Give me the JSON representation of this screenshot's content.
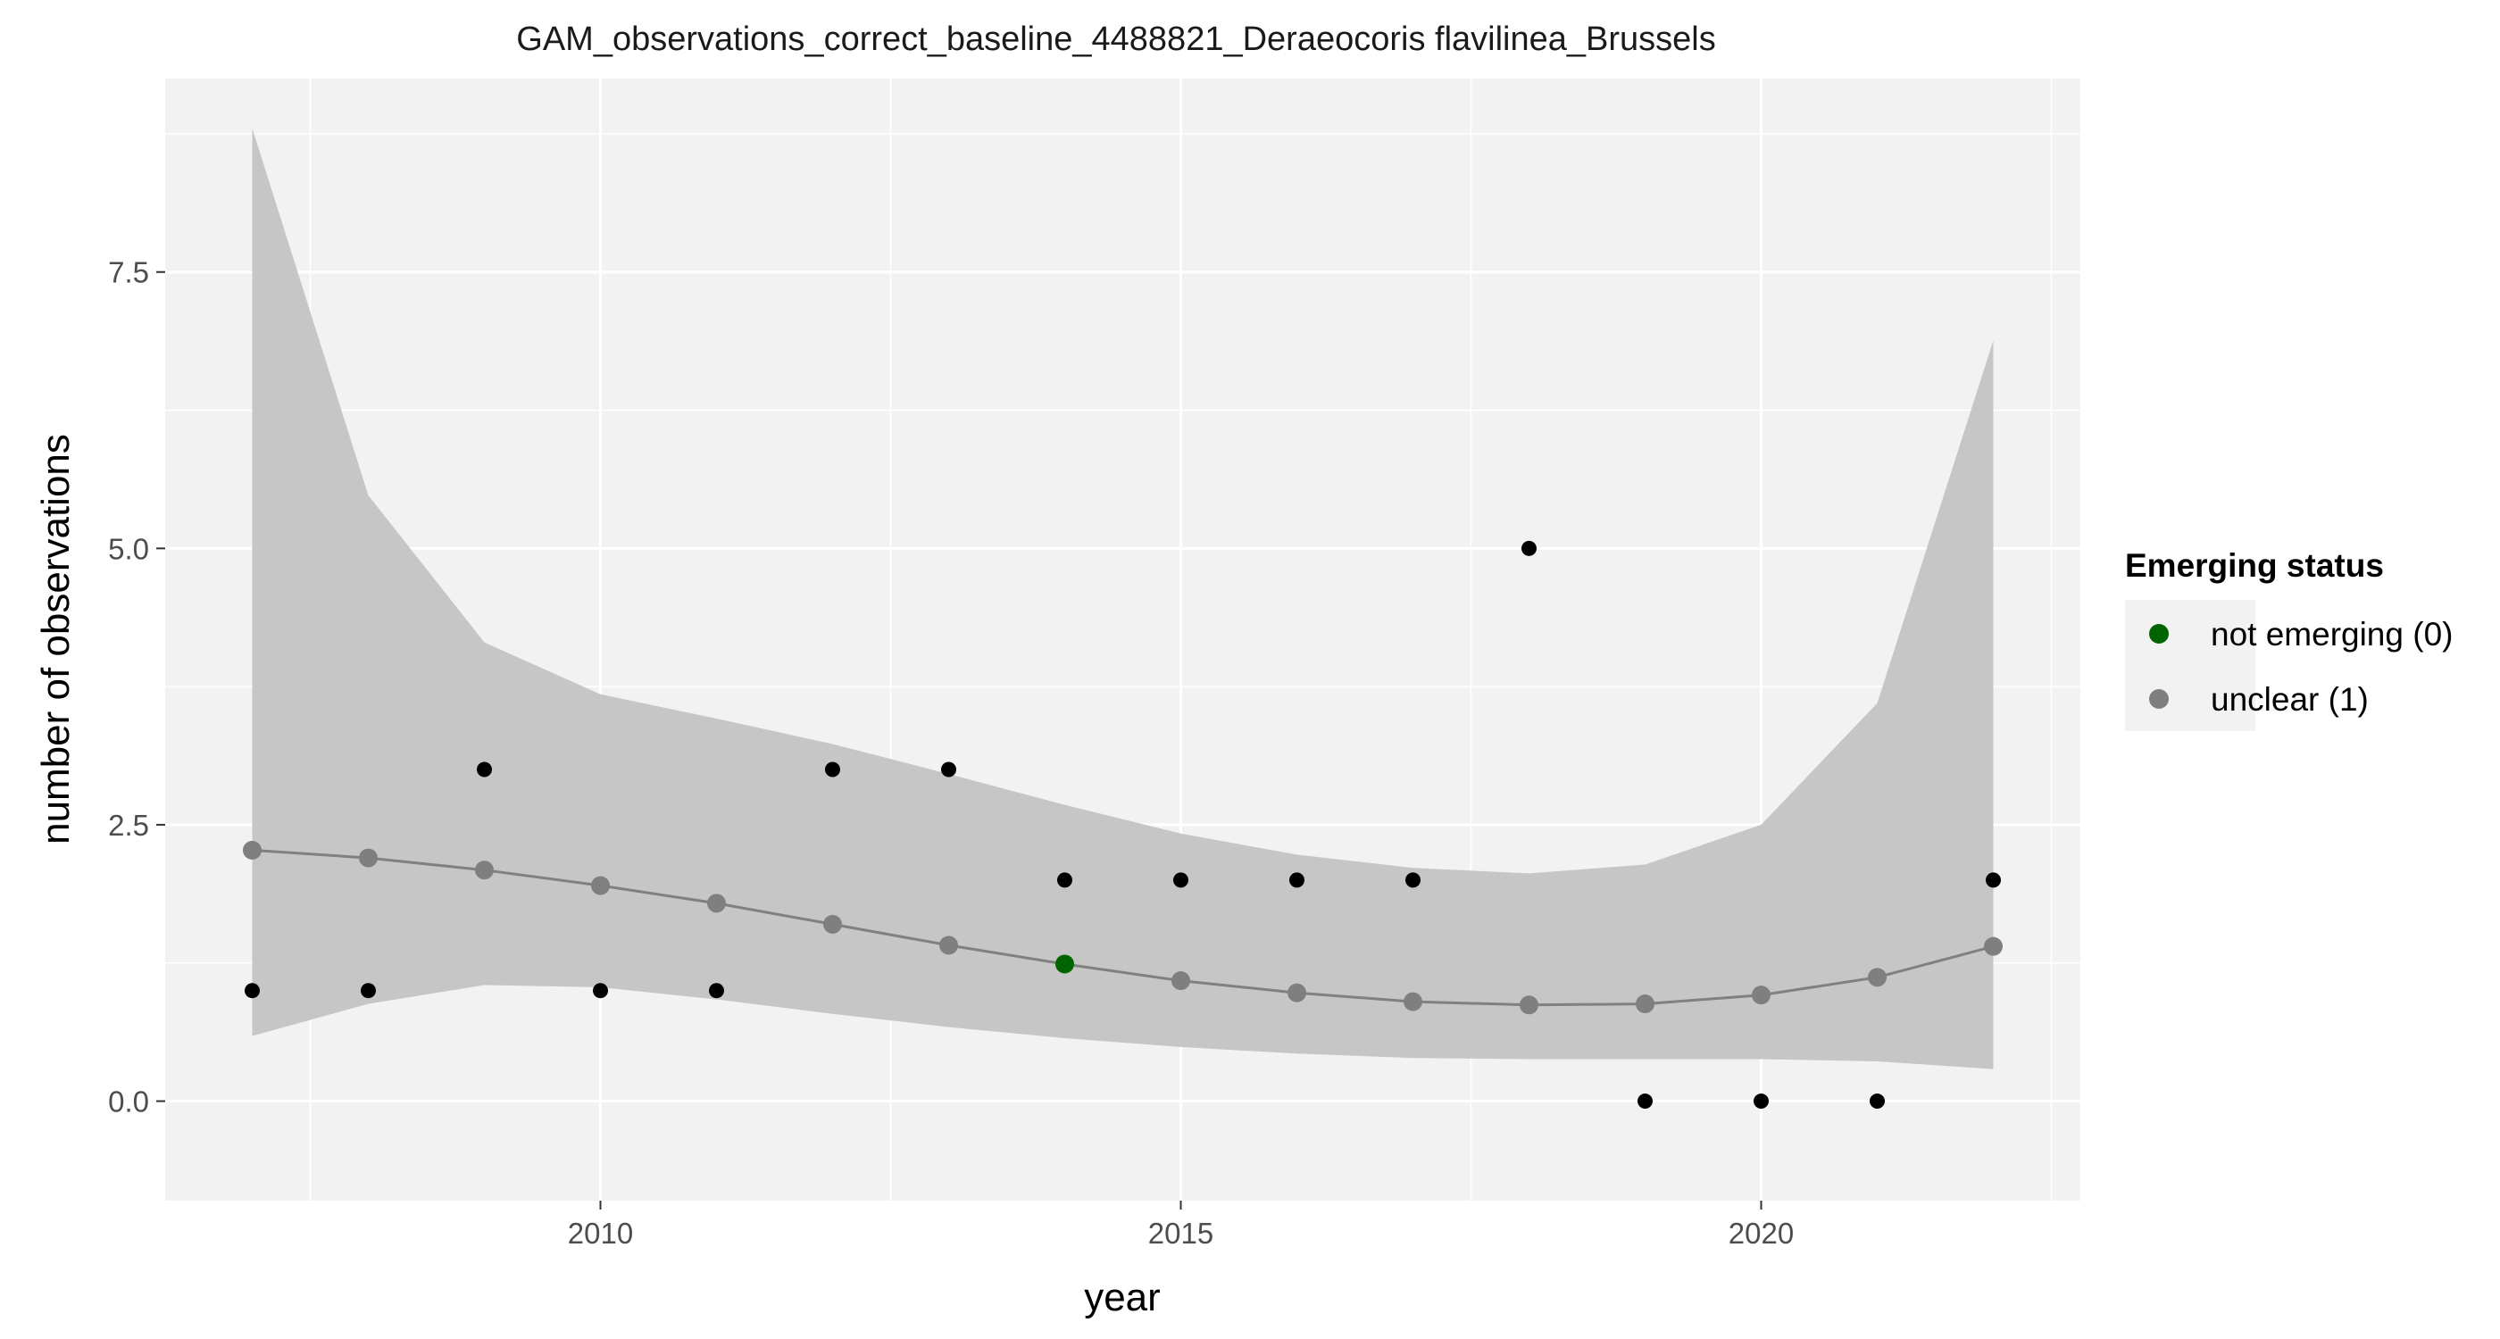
{
  "chart_data": {
    "type": "scatter",
    "title": "GAM_observations_correct_baseline_4488821_Deraeocoris flavilinea_Brussels",
    "xlabel": "year",
    "ylabel": "number of observations",
    "xlim": [
      2006.25,
      2022.75
    ],
    "ylim": [
      -0.9,
      9.25
    ],
    "x_ticks": [
      2010,
      2015,
      2020
    ],
    "x_tick_labels": [
      "2010",
      "2015",
      "2020"
    ],
    "x_minor_ticks": [
      2007.5,
      2012.5,
      2017.5,
      2022.5
    ],
    "y_ticks": [
      0,
      2.5,
      5,
      7.5
    ],
    "y_tick_labels": [
      "0.0",
      "2.5",
      "5.0",
      "7.5"
    ],
    "y_minor_ticks": [
      1.25,
      3.75,
      6.25,
      8.75
    ],
    "grid": true,
    "observed": {
      "x": [
        2007,
        2008,
        2009,
        2010,
        2011,
        2012,
        2013,
        2014,
        2015,
        2016,
        2017,
        2018,
        2019,
        2020,
        2021,
        2022
      ],
      "y": [
        1,
        1,
        3,
        1,
        1,
        3,
        3,
        2,
        2,
        2,
        2,
        5,
        0,
        0,
        0,
        2
      ],
      "color": "#000000"
    },
    "fit": {
      "x": [
        2007,
        2008,
        2009,
        2010,
        2011,
        2012,
        2013,
        2014,
        2015,
        2016,
        2017,
        2018,
        2019,
        2020,
        2021,
        2022
      ],
      "y": [
        2.27,
        2.2,
        2.09,
        1.95,
        1.79,
        1.6,
        1.41,
        1.24,
        1.09,
        0.98,
        0.9,
        0.87,
        0.88,
        0.96,
        1.12,
        1.4
      ],
      "lower": [
        0.59,
        0.88,
        1.05,
        1.03,
        0.92,
        0.79,
        0.67,
        0.57,
        0.49,
        0.43,
        0.39,
        0.38,
        0.38,
        0.38,
        0.36,
        0.29
      ],
      "upper": [
        8.8,
        5.48,
        4.15,
        3.68,
        3.46,
        3.23,
        2.96,
        2.68,
        2.42,
        2.23,
        2.11,
        2.06,
        2.14,
        2.5,
        3.6,
        6.88
      ],
      "status": [
        "unclear (1)",
        "unclear (1)",
        "unclear (1)",
        "unclear (1)",
        "unclear (1)",
        "unclear (1)",
        "unclear (1)",
        "not emerging (0)",
        "unclear (1)",
        "unclear (1)",
        "unclear (1)",
        "unclear (1)",
        "unclear (1)",
        "unclear (1)",
        "unclear (1)",
        "unclear (1)"
      ],
      "line_color": "#808080",
      "ribbon_color": "#c6c6c6"
    },
    "legend": {
      "title": "Emerging status",
      "position": "right",
      "entries": [
        {
          "label": "not emerging (0)",
          "color": "#006400"
        },
        {
          "label": "unclear (1)",
          "color": "#7f7f7f"
        }
      ]
    },
    "panel_background": "#f2f2f2",
    "grid_color": "#ffffff"
  }
}
